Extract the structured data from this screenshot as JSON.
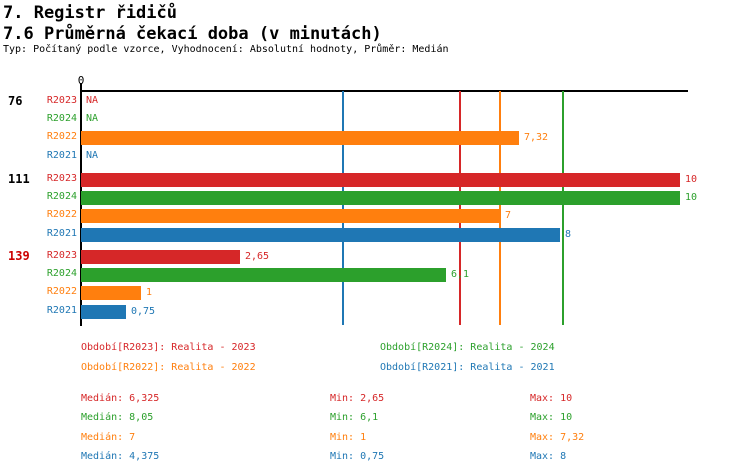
{
  "header": {
    "title": "7. Registr řidičů",
    "subtitle": "7.6 Průměrná čekací doba (v minutách)",
    "meta": "Typ: Počítaný podle vzorce, Vyhodnocení: Absolutní hodnoty, Průměr: Medián"
  },
  "colors": {
    "R2023": "#d62728",
    "R2024": "#2ca02c",
    "R2022": "#ff7f0e",
    "R2021": "#1f77b4",
    "axis": "#000000",
    "group_label_default": "#000000",
    "group_label_highlight": "#cc0000"
  },
  "chart_data": {
    "type": "bar",
    "orientation": "horizontal",
    "value_axis": {
      "min": 0,
      "max_shown": 10,
      "zero_label": "0",
      "grid": "median lines only"
    },
    "series_order": [
      "R2023",
      "R2024",
      "R2022",
      "R2021"
    ],
    "groups": [
      {
        "label": "76",
        "label_color": "#000000",
        "bars": [
          {
            "series": "R2023",
            "value": null,
            "display": "NA"
          },
          {
            "series": "R2024",
            "value": null,
            "display": "NA"
          },
          {
            "series": "R2022",
            "value": 7.32,
            "display": "7,32"
          },
          {
            "series": "R2021",
            "value": null,
            "display": "NA"
          }
        ]
      },
      {
        "label": "111",
        "label_color": "#000000",
        "bars": [
          {
            "series": "R2023",
            "value": 10,
            "display": "10"
          },
          {
            "series": "R2024",
            "value": 10,
            "display": "10"
          },
          {
            "series": "R2022",
            "value": 7,
            "display": "7"
          },
          {
            "series": "R2021",
            "value": 8,
            "display": "8"
          }
        ]
      },
      {
        "label": "139",
        "label_color": "#cc0000",
        "bars": [
          {
            "series": "R2023",
            "value": 2.65,
            "display": "2,65"
          },
          {
            "series": "R2024",
            "value": 6.1,
            "display": "6,1"
          },
          {
            "series": "R2022",
            "value": 1,
            "display": "1"
          },
          {
            "series": "R2021",
            "value": 0.75,
            "display": "0,75"
          }
        ]
      }
    ],
    "median_gridlines": [
      {
        "series": "R2021",
        "value": 4.375
      },
      {
        "series": "R2023",
        "value": 6.325
      },
      {
        "series": "R2022",
        "value": 7
      },
      {
        "series": "R2024",
        "value": 8.05
      }
    ]
  },
  "legend": {
    "left": [
      {
        "series": "R2023",
        "text": "Období[R2023]: Realita - 2023"
      },
      {
        "series": "R2022",
        "text": "Období[R2022]: Realita - 2022"
      }
    ],
    "right": [
      {
        "series": "R2024",
        "text": "Období[R2024]: Realita - 2024"
      },
      {
        "series": "R2021",
        "text": "Období[R2021]: Realita - 2021"
      }
    ]
  },
  "stats": [
    {
      "series": "R2023",
      "median": "Medián: 6,325",
      "min": "Min: 2,65",
      "max": "Max: 10"
    },
    {
      "series": "R2024",
      "median": "Medián: 8,05",
      "min": "Min: 6,1",
      "max": "Max: 10"
    },
    {
      "series": "R2022",
      "median": "Medián: 7",
      "min": "Min: 1",
      "max": "Max: 7,32"
    },
    {
      "series": "R2021",
      "median": "Medián: 4,375",
      "min": "Min: 0,75",
      "max": "Max: 8"
    }
  ]
}
